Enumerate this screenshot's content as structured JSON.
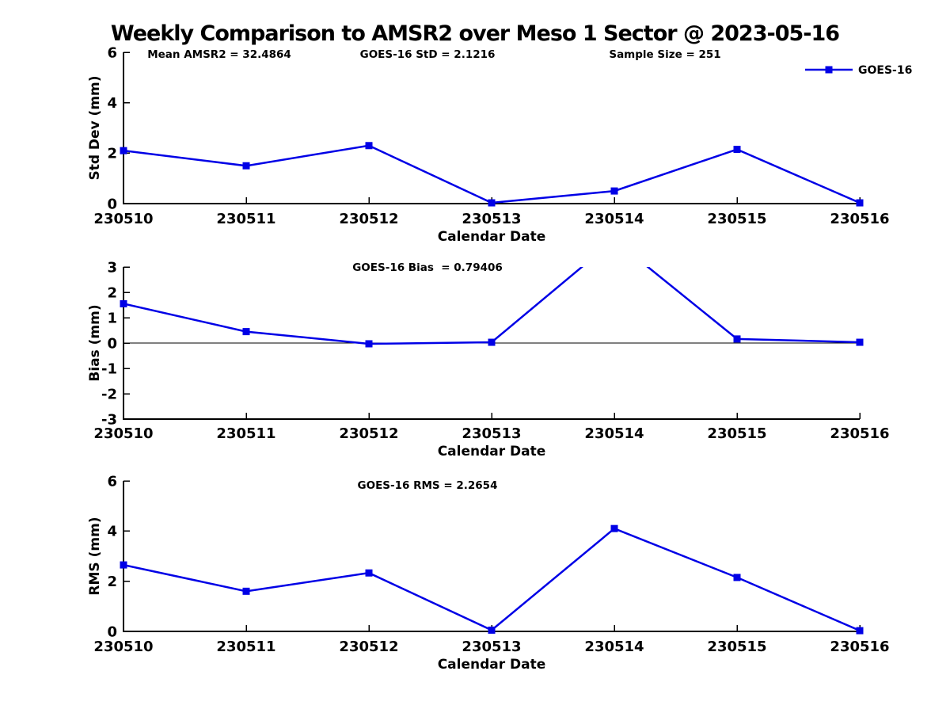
{
  "title": "Weekly Comparison to AMSR2 over Meso 1 Sector @ 2023-05-16",
  "legend": {
    "label": "GOES-16"
  },
  "colors": {
    "line": "#0000E6",
    "axis": "#000000",
    "text": "#000000",
    "background": "#FFFFFF"
  },
  "chart_data": [
    {
      "id": "std-dev",
      "type": "line",
      "annotations": [
        {
          "text": "Mean AMSR2 = 32.4864"
        },
        {
          "text": "GOES-16 StD = 2.1216"
        },
        {
          "text": "Sample Size = 251"
        }
      ],
      "categories": [
        "230510",
        "230511",
        "230512",
        "230513",
        "230514",
        "230515",
        "230516"
      ],
      "series": [
        {
          "name": "GOES-16",
          "marker": "square",
          "values": [
            2.1,
            1.5,
            2.3,
            0.03,
            0.5,
            2.15,
            0.03
          ]
        }
      ],
      "xlabel": "Calendar Date",
      "ylabel": "Std Dev (mm)",
      "ylim": [
        0,
        6
      ],
      "yticks": [
        0,
        2,
        4,
        6
      ],
      "show_legend": true,
      "zero_line": false,
      "legend_position": "top-right",
      "grid": false
    },
    {
      "id": "bias",
      "type": "line",
      "annotations": [
        {
          "text": "GOES-16 Bias  = 0.79406"
        }
      ],
      "categories": [
        "230510",
        "230511",
        "230512",
        "230513",
        "230514",
        "230515",
        "230516"
      ],
      "series": [
        {
          "name": "GOES-16",
          "marker": "square",
          "values": [
            1.55,
            0.45,
            -0.03,
            0.03,
            4.07,
            0.16,
            0.03
          ]
        }
      ],
      "xlabel": "Calendar Date",
      "ylabel": "Bias (mm)",
      "ylim": [
        -3,
        3
      ],
      "yticks": [
        -3,
        -2,
        -1,
        0,
        1,
        2,
        3
      ],
      "show_legend": false,
      "zero_line": true,
      "grid": false
    },
    {
      "id": "rms",
      "type": "line",
      "annotations": [
        {
          "text": "GOES-16 RMS = 2.2654"
        }
      ],
      "categories": [
        "230510",
        "230511",
        "230512",
        "230513",
        "230514",
        "230515",
        "230516"
      ],
      "series": [
        {
          "name": "GOES-16",
          "marker": "square",
          "values": [
            2.65,
            1.6,
            2.33,
            0.05,
            4.1,
            2.15,
            0.03
          ]
        }
      ],
      "xlabel": "Calendar Date",
      "ylabel": "RMS (mm)",
      "ylim": [
        0,
        6
      ],
      "yticks": [
        0,
        2,
        4,
        6
      ],
      "show_legend": false,
      "zero_line": false,
      "grid": false
    }
  ]
}
